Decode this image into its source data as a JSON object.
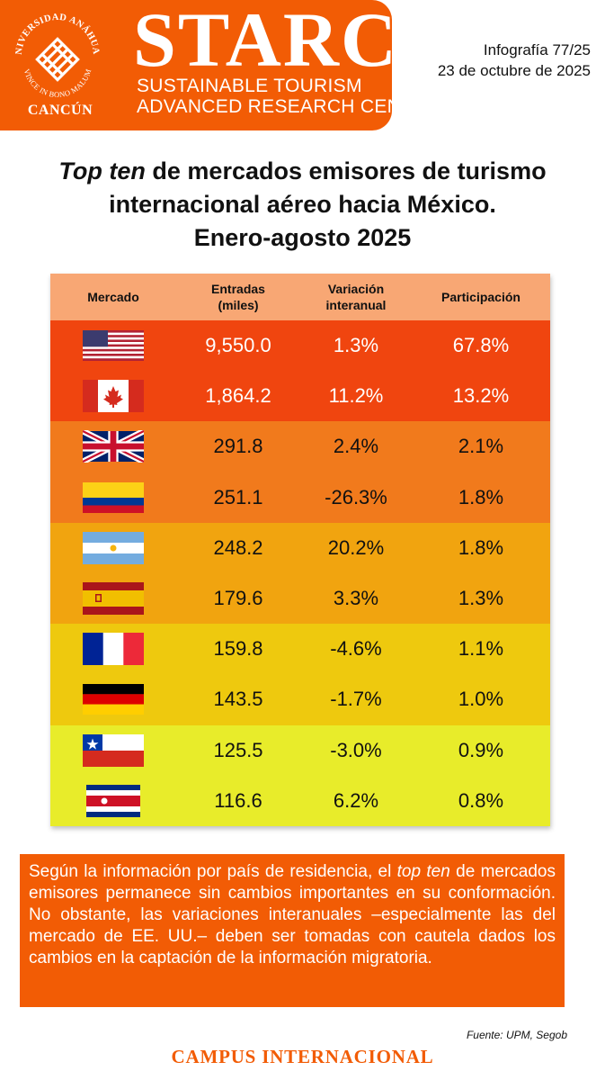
{
  "header": {
    "seal_text": "UNIVERSIDAD ANÁHUAC",
    "seal_motto": "VINCE IN BONO MALUM",
    "campus": "CANCÚN",
    "brand": "STARC",
    "subtitle_line1": "SUSTAINABLE TOURISM",
    "subtitle_line2": "ADVANCED RESEARCH CENTER",
    "brand_color": "#f25c05"
  },
  "meta": {
    "infographic": "Infografía 77/25",
    "date": "23 de octubre de 2025"
  },
  "title": {
    "italic_part": "Top ten",
    "rest_line1": " de mercados emisores de turismo",
    "line2": "internacional aéreo hacia México.",
    "line3": "Enero-agosto 2025"
  },
  "table": {
    "headers": {
      "market": "Mercado",
      "arrivals_line1": "Entradas",
      "arrivals_line2": "(miles)",
      "variation_line1": "Variación",
      "variation_line2": "interanual",
      "share": "Participación"
    },
    "rows": [
      {
        "flag": "usa-flag-icon",
        "arrivals": "9,550.0",
        "variation": "1.3%",
        "share": "67.8%",
        "color": "#f0450f"
      },
      {
        "flag": "canada-flag-icon",
        "arrivals": "1,864.2",
        "variation": "11.2%",
        "share": "13.2%",
        "color": "#f0450f"
      },
      {
        "flag": "uk-flag-icon",
        "arrivals": "291.8",
        "variation": "2.4%",
        "share": "2.1%",
        "color": "#f17a1c"
      },
      {
        "flag": "colombia-flag-icon",
        "arrivals": "251.1",
        "variation": "-26.3%",
        "share": "1.8%",
        "color": "#f17a1c"
      },
      {
        "flag": "argentina-flag-icon",
        "arrivals": "248.2",
        "variation": "20.2%",
        "share": "1.8%",
        "color": "#f1a40f"
      },
      {
        "flag": "spain-flag-icon",
        "arrivals": "179.6",
        "variation": "3.3%",
        "share": "1.3%",
        "color": "#f1a40f"
      },
      {
        "flag": "france-flag-icon",
        "arrivals": "159.8",
        "variation": "-4.6%",
        "share": "1.1%",
        "color": "#eec90e"
      },
      {
        "flag": "germany-flag-icon",
        "arrivals": "143.5",
        "variation": "-1.7%",
        "share": "1.0%",
        "color": "#eec90e"
      },
      {
        "flag": "chile-flag-icon",
        "arrivals": "125.5",
        "variation": "-3.0%",
        "share": "0.9%",
        "color": "#e8ec2a"
      },
      {
        "flag": "costa-rica-flag-icon",
        "arrivals": "116.6",
        "variation": "6.2%",
        "share": "0.8%",
        "color": "#e8ec2a"
      }
    ]
  },
  "note": {
    "part1": "Según la información por país de residencia, el ",
    "italic": "top ten",
    "part2": " de mercados emisores permanece sin cambios importantes en su conformación. No obstante, las variaciones interanuales –especialmente las del mercado de EE. UU.– deben ser tomadas con cautela dados los cambios en la captación de la información migratoria."
  },
  "source": "Fuente: UPM, Segob",
  "footer": "CAMPUS INTERNACIONAL"
}
